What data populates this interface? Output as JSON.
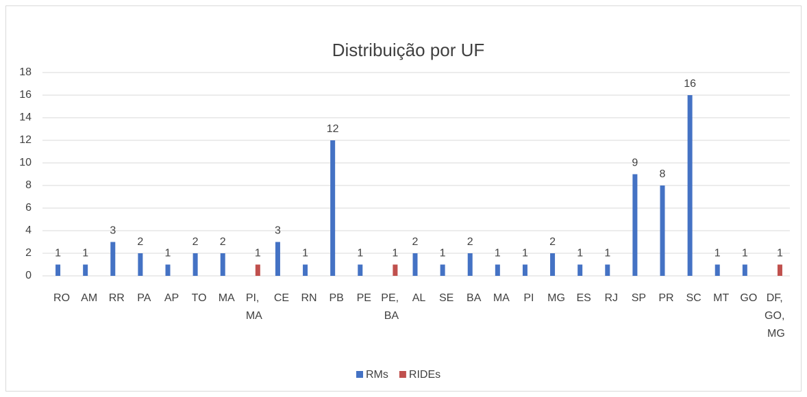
{
  "chart_data": {
    "type": "bar",
    "title": "Distribuição por UF",
    "categories": [
      "RO",
      "AM",
      "RR",
      "PA",
      "AP",
      "TO",
      "MA",
      "PI, MA",
      "CE",
      "RN",
      "PB",
      "PE",
      "PE, BA",
      "AL",
      "SE",
      "BA",
      "MA",
      "PI",
      "MG",
      "ES",
      "RJ",
      "SP",
      "PR",
      "SC",
      "MT",
      "GO",
      "DF, GO, MG"
    ],
    "series": [
      {
        "name": "RMs",
        "color": "#4472c4",
        "values": [
          1,
          1,
          3,
          2,
          1,
          2,
          2,
          null,
          3,
          1,
          12,
          1,
          null,
          2,
          1,
          2,
          1,
          1,
          2,
          1,
          1,
          9,
          8,
          16,
          1,
          1,
          null
        ]
      },
      {
        "name": "RIDEs",
        "color": "#c0504d",
        "values": [
          null,
          null,
          null,
          null,
          null,
          null,
          null,
          1,
          null,
          null,
          null,
          null,
          1,
          null,
          null,
          null,
          null,
          null,
          null,
          null,
          null,
          null,
          null,
          null,
          null,
          null,
          1
        ]
      }
    ],
    "ylim": [
      0,
      18
    ],
    "yticks": [
      0,
      2,
      4,
      6,
      8,
      10,
      12,
      14,
      16,
      18
    ],
    "grid": true,
    "legend": "bottom"
  }
}
